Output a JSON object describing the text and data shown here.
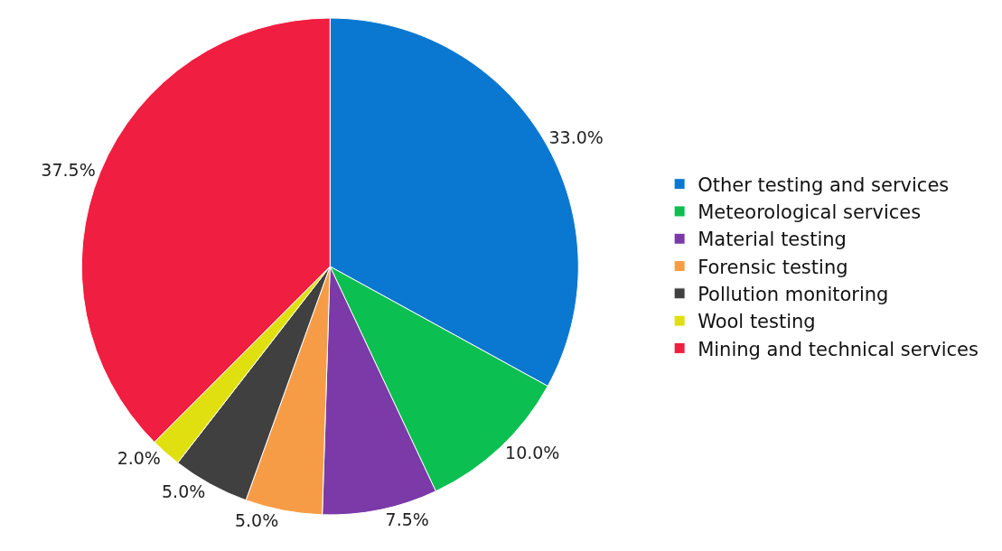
{
  "chart_data": {
    "type": "pie",
    "categories": [
      "Other testing and services",
      "Meteorological services",
      "Material testing",
      "Forensic testing",
      "Pollution monitoring",
      "Wool testing",
      "Mining and technical services"
    ],
    "values": [
      33.0,
      10.0,
      7.5,
      5.0,
      5.0,
      2.0,
      37.5
    ],
    "value_labels": [
      "33.0%",
      "10.0%",
      "7.5%",
      "5.0%",
      "5.0%",
      "2.0%",
      "37.5%"
    ],
    "colors": [
      "#0a78d0",
      "#0bbf50",
      "#7b3aa8",
      "#f79c46",
      "#404040",
      "#e0e010",
      "#f01e40"
    ],
    "legend": "right"
  }
}
